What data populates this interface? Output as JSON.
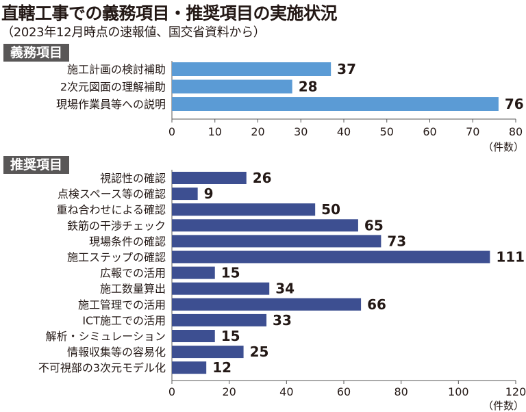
{
  "title": "直轄工事での義務項目・推奨項目の実施状況",
  "subtitle": "（2023年12月時点の速報値、国交省資料から）",
  "colors": {
    "mandatory_bar": "#5b9bd5",
    "recommended_bar": "#3d4f91",
    "tag_bg": "#595757",
    "axis": "#555555"
  },
  "chart_data": [
    {
      "type": "bar",
      "orientation": "horizontal",
      "title": "義務項目",
      "categories": [
        "施工計画の検討補助",
        "2次元図面の理解補助",
        "現場作業員等への説明"
      ],
      "values": [
        37,
        28,
        76
      ],
      "xlim": [
        0,
        80
      ],
      "xticks": [
        0,
        10,
        20,
        30,
        40,
        50,
        60,
        70,
        80
      ],
      "xlabel": "（件数）"
    },
    {
      "type": "bar",
      "orientation": "horizontal",
      "title": "推奨項目",
      "categories": [
        "視認性の確認",
        "点検スペース等の確認",
        "重ね合わせによる確認",
        "鉄筋の干渉チェック",
        "現場条件の確認",
        "施工ステップの確認",
        "広報での活用",
        "施工数量算出",
        "施工管理での活用",
        "ICT施工での活用",
        "解析・シミュレーション",
        "情報収集等の容易化",
        "不可視部の3次元モデル化"
      ],
      "values": [
        26,
        9,
        50,
        65,
        73,
        111,
        15,
        34,
        66,
        33,
        15,
        25,
        12
      ],
      "xlim": [
        0,
        120
      ],
      "xticks": [
        0,
        20,
        40,
        60,
        80,
        100,
        120
      ],
      "xlabel": "（件数）"
    }
  ]
}
